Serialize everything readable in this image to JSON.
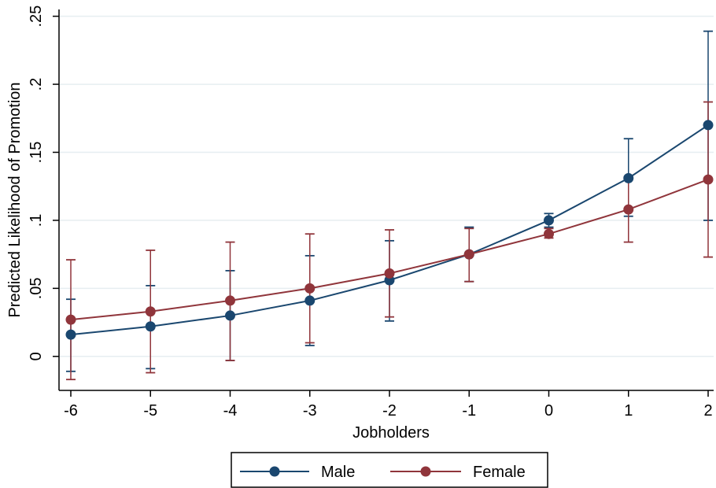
{
  "chart_data": {
    "type": "line",
    "title": "",
    "xlabel": "Jobholders",
    "ylabel": "Predicted Likelihood of Promotion",
    "x": [
      -6,
      -5,
      -4,
      -3,
      -2,
      -1,
      0,
      1,
      2
    ],
    "x_tick_labels": [
      "-6",
      "-5",
      "-4",
      "-3",
      "-2",
      "-1",
      "0",
      "1",
      "2"
    ],
    "y_ticks": [
      0,
      0.05,
      0.1,
      0.15,
      0.2,
      0.25
    ],
    "y_tick_labels": [
      "0",
      ".05",
      ".1",
      ".15",
      ".2",
      ".25"
    ],
    "xlim": [
      -6,
      2
    ],
    "ylim": [
      -0.025,
      0.255
    ],
    "grid": true,
    "legend_position": "bottom",
    "series": [
      {
        "name": "Male",
        "color": "#1a476f",
        "values": [
          0.016,
          0.022,
          0.03,
          0.041,
          0.056,
          0.075,
          0.1,
          0.131,
          0.17
        ],
        "ci_low": [
          -0.011,
          -0.009,
          -0.003,
          0.008,
          0.026,
          0.055,
          0.095,
          0.103,
          0.1
        ],
        "ci_high": [
          0.042,
          0.052,
          0.063,
          0.074,
          0.085,
          0.095,
          0.105,
          0.16,
          0.239
        ]
      },
      {
        "name": "Female",
        "color": "#90353b",
        "values": [
          0.027,
          0.033,
          0.041,
          0.05,
          0.061,
          0.075,
          0.09,
          0.108,
          0.13
        ],
        "ci_low": [
          -0.017,
          -0.012,
          -0.003,
          0.01,
          0.029,
          0.055,
          0.087,
          0.084,
          0.073
        ],
        "ci_high": [
          0.071,
          0.078,
          0.084,
          0.09,
          0.093,
          0.094,
          0.094,
          0.132,
          0.187
        ]
      }
    ]
  }
}
